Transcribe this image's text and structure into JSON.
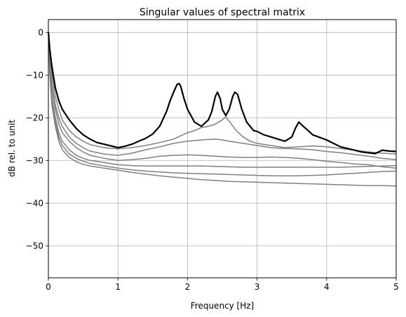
{
  "chart_data": {
    "type": "line",
    "title": "Singular values of spectral matrix",
    "xlabel": "Frequency [Hz]",
    "ylabel": "dB rel. to unit",
    "xlim": [
      0,
      5
    ],
    "ylim": [
      -57.5,
      3
    ],
    "x_ticks": [
      0,
      1,
      2,
      3,
      4,
      5
    ],
    "x_tick_labels": [
      "0",
      "1",
      "2",
      "3",
      "4",
      "5"
    ],
    "y_ticks": [
      0,
      -10,
      -20,
      -30,
      -40,
      -50
    ],
    "y_tick_labels": [
      "0",
      "−10",
      "−20",
      "−30",
      "−40",
      "−50"
    ],
    "grid": true,
    "colors": {
      "first_singular_value": "#000000",
      "other_singular_values": "#808080"
    },
    "series": [
      {
        "x": [
          0,
          0.02,
          0.05,
          0.1,
          0.15,
          0.2,
          0.3,
          0.4,
          0.5,
          0.6,
          0.7,
          0.8,
          0.9,
          1.0,
          1.1,
          1.2,
          1.3,
          1.4,
          1.5,
          1.6,
          1.7,
          1.75,
          1.8,
          1.85,
          1.88,
          1.9,
          1.95,
          2.0,
          2.1,
          2.2,
          2.3,
          2.35,
          2.4,
          2.43,
          2.47,
          2.5,
          2.55,
          2.6,
          2.65,
          2.68,
          2.72,
          2.78,
          2.85,
          2.95,
          3.0,
          3.1,
          3.2,
          3.3,
          3.4,
          3.5,
          3.55,
          3.6,
          3.65,
          3.7,
          3.8,
          3.9,
          4.0,
          4.1,
          4.2,
          4.3,
          4.4,
          4.5,
          4.6,
          4.7,
          4.8,
          4.9,
          5.0
        ],
        "y": [
          0,
          -4,
          -8,
          -13,
          -16,
          -18,
          -20.5,
          -22.5,
          -24,
          -25,
          -25.8,
          -26.2,
          -26.6,
          -27,
          -26.7,
          -26.2,
          -25.5,
          -24.8,
          -23.8,
          -22,
          -18.5,
          -16,
          -14,
          -12.2,
          -12,
          -12.5,
          -15.5,
          -18,
          -21,
          -22,
          -20.5,
          -18.5,
          -15,
          -14,
          -15.5,
          -18,
          -19.5,
          -18,
          -15,
          -14,
          -14.5,
          -18,
          -21,
          -23,
          -23.2,
          -24,
          -24.5,
          -25,
          -25.5,
          -24.5,
          -22.5,
          -21,
          -21.8,
          -22.5,
          -24,
          -24.6,
          -25.2,
          -26,
          -26.8,
          -27.2,
          -27.6,
          -28,
          -28.2,
          -28.4,
          -27.6,
          -27.8,
          -27.9
        ]
      },
      {
        "x": [
          0,
          0.02,
          0.05,
          0.1,
          0.15,
          0.2,
          0.3,
          0.4,
          0.5,
          0.6,
          0.8,
          1.0,
          1.2,
          1.4,
          1.6,
          1.8,
          2.0,
          2.1,
          2.2,
          2.3,
          2.4,
          2.5,
          2.55,
          2.6,
          2.7,
          2.8,
          2.9,
          3.0,
          3.2,
          3.4,
          3.6,
          3.8,
          4.0,
          4.2,
          4.4,
          4.6,
          4.8,
          5.0
        ],
        "y": [
          0,
          -5,
          -10,
          -15,
          -18,
          -20.5,
          -23,
          -24.5,
          -25.5,
          -26.3,
          -27,
          -27.3,
          -27,
          -26.5,
          -25.8,
          -25,
          -23.5,
          -23,
          -22.3,
          -22,
          -21.5,
          -20.5,
          -19.8,
          -20.8,
          -23,
          -24.5,
          -25.5,
          -26,
          -26.5,
          -27,
          -26.8,
          -26.6,
          -26.8,
          -27.2,
          -27.6,
          -28,
          -28.3,
          -28.5
        ]
      },
      {
        "x": [
          0,
          0.02,
          0.05,
          0.1,
          0.15,
          0.2,
          0.3,
          0.4,
          0.5,
          0.6,
          0.8,
          1.0,
          1.2,
          1.4,
          1.6,
          1.8,
          2.0,
          2.2,
          2.4,
          2.5,
          2.6,
          2.8,
          3.0,
          3.2,
          3.4,
          3.6,
          3.8,
          4.0,
          4.2,
          4.4,
          4.6,
          4.8,
          5.0
        ],
        "y": [
          0,
          -6,
          -12,
          -17,
          -20,
          -22,
          -24.5,
          -26,
          -27,
          -27.8,
          -28.5,
          -28.8,
          -28.3,
          -27.5,
          -26.8,
          -26,
          -25.5,
          -25.2,
          -25,
          -25.2,
          -25.5,
          -26,
          -26.5,
          -27,
          -27.2,
          -27.3,
          -27.5,
          -27.9,
          -28.2,
          -28.6,
          -29,
          -29.5,
          -29.8
        ]
      },
      {
        "x": [
          0,
          0.02,
          0.05,
          0.1,
          0.15,
          0.2,
          0.3,
          0.4,
          0.5,
          0.6,
          0.8,
          1.0,
          1.2,
          1.4,
          1.6,
          1.8,
          2.0,
          2.2,
          2.4,
          2.6,
          2.8,
          3.0,
          3.2,
          3.4,
          3.6,
          3.8,
          4.0,
          4.2,
          4.4,
          4.6,
          4.8,
          5.0
        ],
        "y": [
          0,
          -7,
          -13,
          -18,
          -21.5,
          -23.5,
          -25.5,
          -27,
          -28,
          -28.8,
          -29.5,
          -30,
          -29.8,
          -29.5,
          -29,
          -28.8,
          -28.7,
          -28.8,
          -29,
          -29.2,
          -29.3,
          -29.3,
          -29.2,
          -29.3,
          -29.5,
          -29.8,
          -30.2,
          -30.5,
          -30.8,
          -31,
          -31.5,
          -31.8
        ]
      },
      {
        "x": [
          0,
          0.02,
          0.05,
          0.1,
          0.15,
          0.2,
          0.3,
          0.4,
          0.5,
          0.6,
          0.8,
          1.0,
          1.2,
          1.4,
          1.6,
          1.8,
          2.0,
          2.2,
          2.4,
          2.6,
          2.8,
          3.0,
          3.2,
          3.4,
          3.6,
          3.8,
          4.0,
          4.2,
          4.4,
          4.6,
          4.8,
          5.0
        ],
        "y": [
          0,
          -8,
          -15,
          -20,
          -23.5,
          -25.5,
          -27.5,
          -28.8,
          -29.5,
          -30,
          -30.5,
          -31,
          -31.2,
          -31.3,
          -31.3,
          -31.3,
          -31.3,
          -31.3,
          -31.4,
          -31.5,
          -31.6,
          -31.6,
          -31.6,
          -31.6,
          -31.6,
          -31.6,
          -31.6,
          -31.6,
          -31.5,
          -31.4,
          -31.3,
          -31.2
        ]
      },
      {
        "x": [
          0,
          0.02,
          0.05,
          0.1,
          0.15,
          0.2,
          0.3,
          0.4,
          0.5,
          0.6,
          0.8,
          1.0,
          1.2,
          1.4,
          1.6,
          1.8,
          2.0,
          2.2,
          2.4,
          2.6,
          2.8,
          3.0,
          3.2,
          3.4,
          3.6,
          3.8,
          4.0,
          4.2,
          4.4,
          4.6,
          4.8,
          5.0
        ],
        "y": [
          0,
          -9,
          -16,
          -21,
          -24.5,
          -26.5,
          -28.5,
          -29.5,
          -30.2,
          -30.7,
          -31.3,
          -31.8,
          -32.2,
          -32.5,
          -32.7,
          -32.9,
          -33,
          -33.1,
          -33.2,
          -33.3,
          -33.4,
          -33.5,
          -33.6,
          -33.6,
          -33.6,
          -33.5,
          -33.4,
          -33.2,
          -33,
          -32.8,
          -32.6,
          -32.5
        ]
      },
      {
        "x": [
          0,
          0.02,
          0.05,
          0.1,
          0.15,
          0.2,
          0.3,
          0.4,
          0.5,
          0.6,
          0.8,
          1.0,
          1.2,
          1.4,
          1.6,
          1.8,
          2.0,
          2.2,
          2.4,
          2.6,
          2.8,
          3.0,
          3.2,
          3.4,
          3.6,
          3.8,
          4.0,
          4.2,
          4.4,
          4.6,
          4.8,
          5.0
        ],
        "y": [
          0,
          -10,
          -17,
          -22,
          -25.5,
          -27.5,
          -29.3,
          -30.3,
          -30.9,
          -31.3,
          -31.8,
          -32.3,
          -32.8,
          -33.2,
          -33.6,
          -33.9,
          -34.2,
          -34.5,
          -34.7,
          -34.9,
          -35,
          -35.1,
          -35.2,
          -35.3,
          -35.4,
          -35.5,
          -35.6,
          -35.7,
          -35.8,
          -35.9,
          -35.9,
          -36
        ]
      }
    ]
  }
}
